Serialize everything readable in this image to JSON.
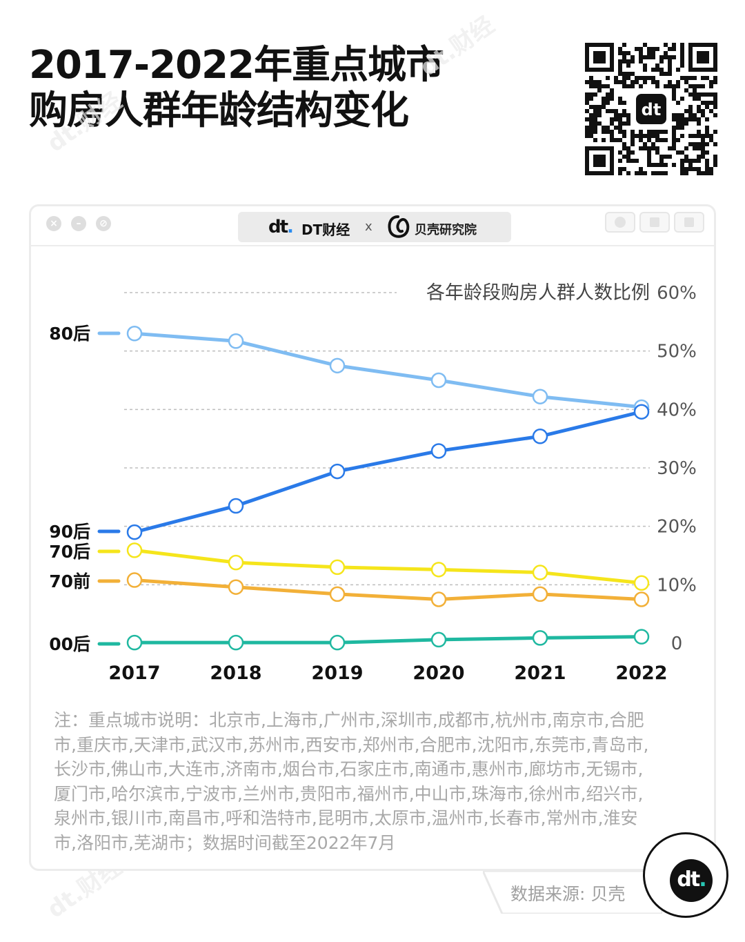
{
  "title": {
    "line1": "2017-2022年重点城市",
    "line2": "购房人群年龄结构变化"
  },
  "brand": {
    "logo": "dt",
    "name": "DT财经",
    "separator": "x",
    "partner": "贝壳研究院",
    "watermark": "dt.财经"
  },
  "icons": {
    "close": "close-icon",
    "minimize": "minimize-icon",
    "expand": "expand-icon",
    "record": "record-icon",
    "share": "share-icon",
    "copy": "copy-icon"
  },
  "chart_data": {
    "type": "line",
    "title": "各年龄段购房人群人数比例",
    "categories": [
      "2017",
      "2018",
      "2019",
      "2020",
      "2021",
      "2022"
    ],
    "ylim": [
      0,
      60
    ],
    "yticks": [
      0,
      10,
      20,
      30,
      40,
      50,
      60
    ],
    "ytick_labels": [
      "0",
      "10%",
      "20%",
      "30%",
      "40%",
      "50%",
      "60%"
    ],
    "grid": true,
    "series": [
      {
        "name": "80后",
        "color": "#7fbcf2",
        "values": [
          53.0,
          51.7,
          47.5,
          45.0,
          42.2,
          40.4
        ]
      },
      {
        "name": "90后",
        "color": "#2a7ae8",
        "values": [
          19.0,
          23.5,
          29.4,
          32.9,
          35.4,
          39.6
        ]
      },
      {
        "name": "70后",
        "color": "#f5e51b",
        "values": [
          15.9,
          13.8,
          13.0,
          12.6,
          12.1,
          10.3
        ]
      },
      {
        "name": "70前",
        "color": "#f2b038",
        "values": [
          10.8,
          9.6,
          8.4,
          7.5,
          8.4,
          7.5
        ]
      },
      {
        "name": "00后",
        "color": "#1fb8a0",
        "values": [
          0.1,
          0.1,
          0.1,
          0.6,
          0.9,
          1.1
        ]
      }
    ]
  },
  "note": "注：重点城市说明：北京市,上海市,广州市,深圳市,成都市,杭州市,南京市,合肥市,重庆市,天津市,武汉市,苏州市,西安市,郑州市,合肥市,沈阳市,东莞市,青岛市,长沙市,佛山市,大连市,济南市,烟台市,石家庄市,南通市,惠州市,廊坊市,无锡市,厦门市,哈尔滨市,宁波市,兰州市,贵阳市,福州市,中山市,珠海市,徐州市,绍兴市,泉州市,银川市,南昌市,呼和浩特市,昆明市,太原市,温州市,长春市,常州市,淮安市,洛阳市,芜湖市；数据时间截至2022年7月",
  "source": "数据来源: 贝壳"
}
